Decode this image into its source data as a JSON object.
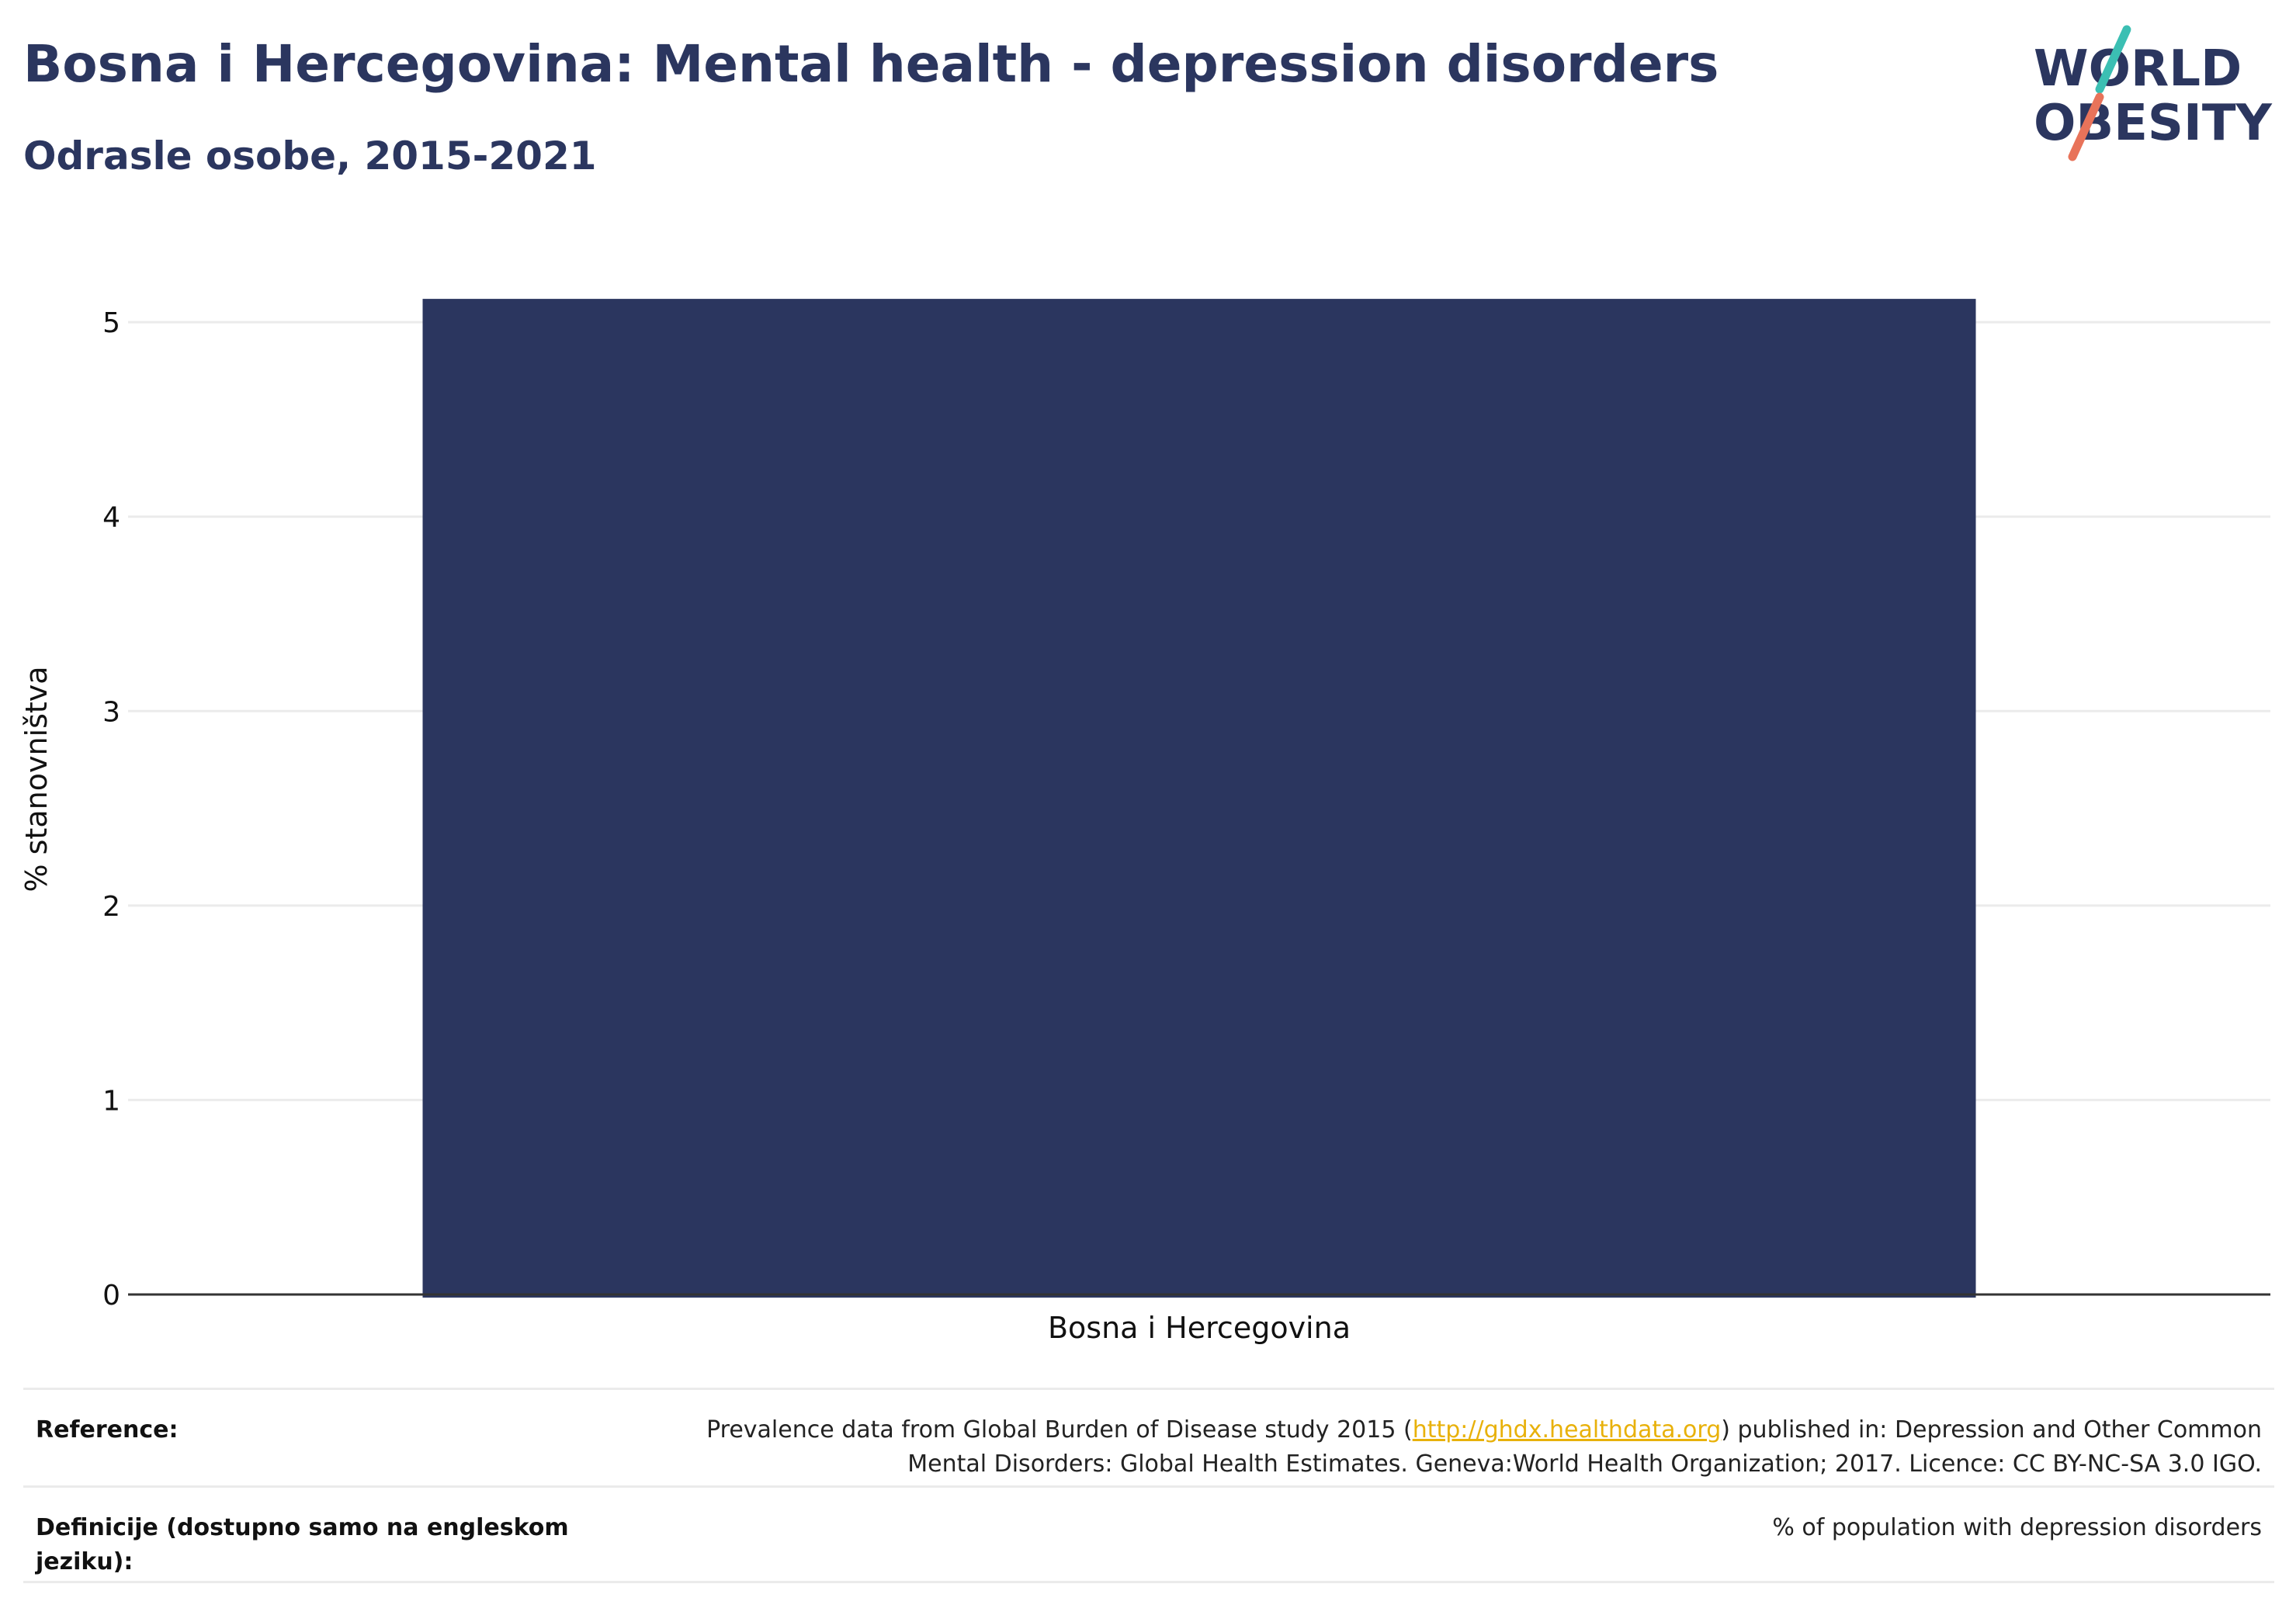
{
  "header": {
    "title": "Bosna i Hercegovina: Mental health - depression disorders",
    "subtitle": "Odrasle osobe, 2015-2021"
  },
  "logo": {
    "line1": "WORLD",
    "line2": "OBESITY"
  },
  "colors": {
    "bar": "#2b365f",
    "title": "#2b365f",
    "link": "#e8b10a",
    "logo_teal": "#3bbfb3",
    "logo_coral": "#e8735a"
  },
  "chart_data": {
    "type": "bar",
    "categories": [
      "Bosna i Hercegovina"
    ],
    "values": [
      5.12
    ],
    "ylabel": "% stanovništva",
    "xlabel": "",
    "ylim": [
      0,
      5.3
    ],
    "yticks": [
      0,
      1,
      2,
      3,
      4,
      5
    ],
    "grid": true,
    "legend": "none"
  },
  "footer": {
    "reference_label": "Reference:",
    "reference_pre": "Prevalence data from Global Burden of Disease study 2015 (",
    "reference_link": "http://ghdx.healthdata.org",
    "reference_post": ") published in: Depression and Other Common Mental Disorders: Global Health Estimates. Geneva:World Health Organization; 2017. Licence: CC BY-NC-SA 3.0 IGO.",
    "definition_label": "Definicije (dostupno samo na engleskom jeziku):",
    "definition_value": "% of population with depression disorders"
  }
}
